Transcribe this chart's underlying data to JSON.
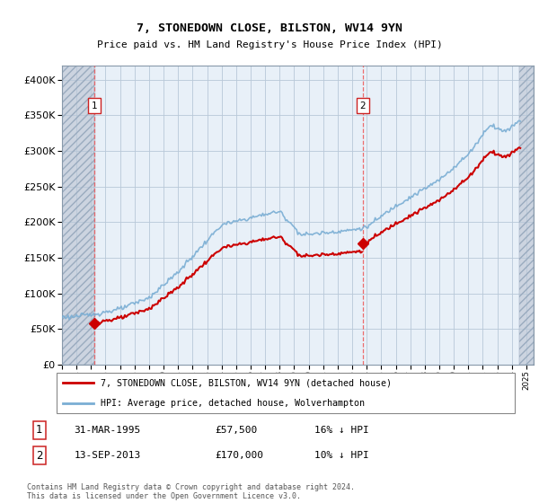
{
  "title": "7, STONEDOWN CLOSE, BILSTON, WV14 9YN",
  "subtitle": "Price paid vs. HM Land Registry's House Price Index (HPI)",
  "hpi_label": "HPI: Average price, detached house, Wolverhampton",
  "price_label": "7, STONEDOWN CLOSE, BILSTON, WV14 9YN (detached house)",
  "legend_note": "Contains HM Land Registry data © Crown copyright and database right 2024.\nThis data is licensed under the Open Government Licence v3.0.",
  "transactions": [
    {
      "id": 1,
      "date": "31-MAR-1995",
      "price": 57500,
      "hpi_diff": "16% ↓ HPI",
      "year_x": 1995.25
    },
    {
      "id": 2,
      "date": "13-SEP-2013",
      "price": 170000,
      "hpi_diff": "10% ↓ HPI",
      "year_x": 2013.71
    }
  ],
  "ylim": [
    0,
    420000
  ],
  "yticks": [
    0,
    50000,
    100000,
    150000,
    200000,
    250000,
    300000,
    350000,
    400000
  ],
  "xlim_start": 1993.0,
  "xlim_end": 2025.5,
  "data_end": 2024.5,
  "hpi_color": "#7aaed4",
  "price_color": "#cc0000",
  "bg_color": "#dce6f0",
  "plot_bg": "#e8f0f8",
  "grid_color": "#b8c8d8",
  "transaction_line_color": "#ee5555",
  "hatch_color": "#b0b8c8"
}
